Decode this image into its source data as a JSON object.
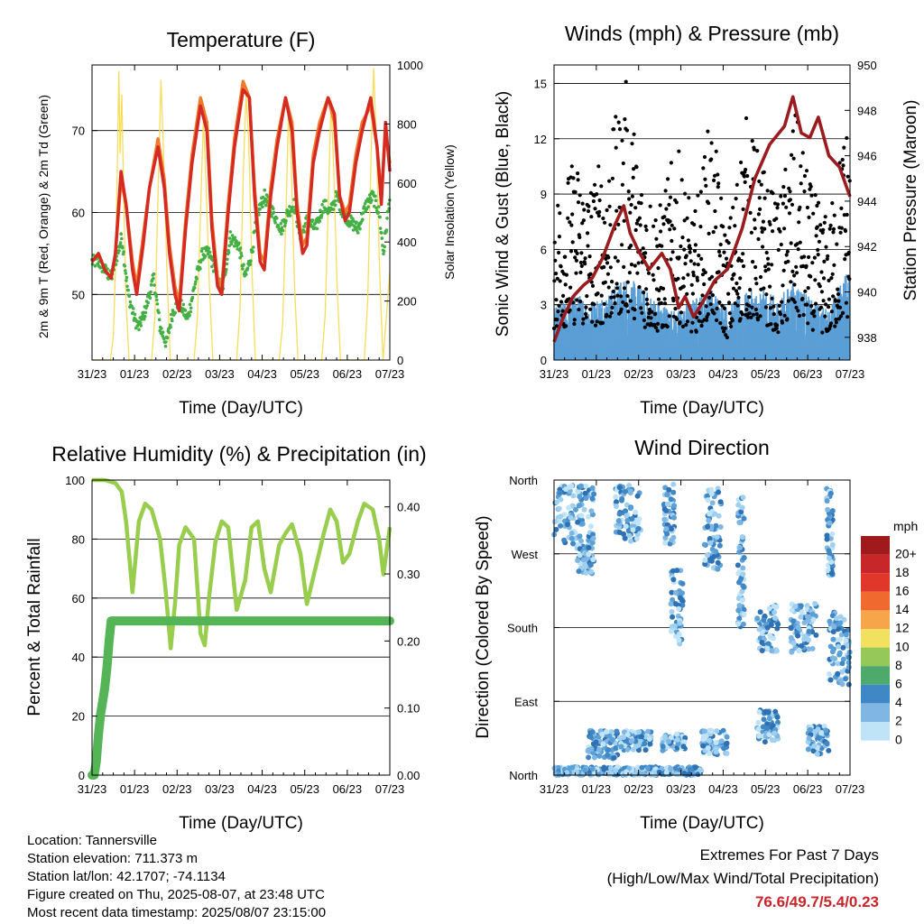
{
  "station": {
    "location_line": "Location: Tannersville",
    "elevation_line": "Station elevation: 711.373 m",
    "latlon_line": "Station lat/lon: 42.1707; -74.1134",
    "created_line": "Figure created on Thu, 2025-08-07, at 23:48 UTC",
    "recent_line": "Most recent data timestamp: 2025/08/07 23:15:00"
  },
  "extremes": {
    "line1": "Extremes For Past 7 Days",
    "line2": "(High/Low/Max Wind/Total Precipitation)",
    "values": "76.6/49.7/5.4/0.23"
  },
  "time_ticks": [
    "31/23",
    "01/23",
    "02/23",
    "03/23",
    "04/23",
    "05/23",
    "06/23",
    "07/23"
  ],
  "colors": {
    "temp_2m": "#d42a22",
    "temp_9m": "#f07a2a",
    "dewpoint": "#44b044",
    "solar": "#f7dd5a",
    "wind": "#5b9fd6",
    "gust": "#000000",
    "pressure": "#9b1c1f",
    "rh": "#98cd4d",
    "precip": "#55b556"
  },
  "chart_data": [
    {
      "type": "line",
      "title": "Temperature (F)",
      "xlabel": "Time (Day/UTC)",
      "ylabel": "2m & 9m T (Red, Orange) & 2m Td (Green)",
      "y2label": "Solar Insolation (Yellow)",
      "x_ticks": [
        "31/23",
        "01/23",
        "02/23",
        "03/23",
        "04/23",
        "05/23",
        "06/23",
        "07/23"
      ],
      "xlim": [
        0,
        7
      ],
      "ylim": [
        42,
        78
      ],
      "y_ticks": [
        50,
        60,
        70
      ],
      "y2lim": [
        0,
        1000
      ],
      "y2_ticks": [
        0,
        200,
        400,
        600,
        800,
        1000
      ],
      "grid": true,
      "series": [
        {
          "axis": "left",
          "x": [
            0,
            0.15,
            0.3,
            0.45,
            0.55,
            0.68,
            0.8,
            0.95,
            1.05,
            1.2,
            1.35,
            1.55,
            1.7,
            1.82,
            1.95,
            2.05,
            2.2,
            2.35,
            2.55,
            2.7,
            2.82,
            2.95,
            3.05,
            3.2,
            3.35,
            3.55,
            3.7,
            3.82,
            3.95,
            4.05,
            4.2,
            4.35,
            4.55,
            4.7,
            4.82,
            4.95,
            5.05,
            5.2,
            5.35,
            5.55,
            5.7,
            5.82,
            5.95,
            6.05,
            6.2,
            6.35,
            6.55,
            6.7,
            6.8,
            6.9,
            7.0
          ],
          "values": [
            54,
            55,
            53,
            52,
            55,
            65,
            61,
            53,
            50,
            56,
            63,
            68,
            63,
            55,
            50,
            48,
            58,
            66,
            73,
            70,
            58,
            51,
            50,
            60,
            68,
            75,
            74,
            62,
            54,
            53,
            62,
            68,
            74,
            70,
            60,
            55,
            56,
            66,
            70,
            74,
            72,
            62,
            59,
            60,
            66,
            70,
            74,
            68,
            61,
            71,
            65
          ]
        },
        {
          "axis": "left",
          "x": [
            0,
            0.15,
            0.3,
            0.45,
            0.55,
            0.68,
            0.8,
            0.95,
            1.05,
            1.2,
            1.35,
            1.55,
            1.7,
            1.82,
            1.95,
            2.05,
            2.2,
            2.35,
            2.55,
            2.7,
            2.82,
            2.95,
            3.05,
            3.2,
            3.35,
            3.55,
            3.7,
            3.82,
            3.95,
            4.05,
            4.2,
            4.35,
            4.55,
            4.7,
            4.82,
            4.95,
            5.05,
            5.2,
            5.35,
            5.55,
            5.7,
            5.82,
            5.95,
            6.05,
            6.2,
            6.35,
            6.55,
            6.7,
            6.8,
            6.9,
            7.0
          ],
          "values": [
            54,
            55,
            53,
            52,
            55,
            64,
            61,
            54,
            51,
            57,
            63,
            69,
            64,
            56,
            51,
            49,
            59,
            67,
            74,
            71,
            59,
            52,
            51,
            61,
            69,
            76,
            74,
            63,
            55,
            54,
            63,
            69,
            74,
            71,
            61,
            56,
            57,
            67,
            71,
            74,
            71,
            62,
            60,
            61,
            67,
            71,
            73,
            68,
            62,
            70,
            66
          ]
        },
        {
          "axis": "left",
          "x": [
            0,
            0.15,
            0.3,
            0.45,
            0.55,
            0.7,
            0.85,
            1.0,
            1.1,
            1.25,
            1.45,
            1.6,
            1.75,
            1.9,
            2.05,
            2.25,
            2.45,
            2.6,
            2.75,
            2.9,
            3.05,
            3.25,
            3.45,
            3.6,
            3.75,
            3.9,
            4.05,
            4.25,
            4.45,
            4.6,
            4.75,
            4.9,
            5.05,
            5.25,
            5.45,
            5.6,
            5.75,
            5.9,
            6.05,
            6.25,
            6.45,
            6.6,
            6.75,
            6.85,
            7.0
          ],
          "values": [
            54,
            54,
            53,
            52,
            54,
            57,
            50,
            47,
            46,
            48,
            52,
            46,
            44,
            48,
            49,
            47,
            52,
            55,
            55,
            53,
            50,
            57,
            56,
            52,
            55,
            60,
            62,
            60,
            58,
            60,
            61,
            57,
            59,
            58,
            61,
            60,
            62,
            60,
            59,
            58,
            61,
            62,
            60,
            55,
            62
          ]
        },
        {
          "axis": "right",
          "x": [
            0,
            0.43,
            0.5,
            0.55,
            0.6,
            0.63,
            0.66,
            0.7,
            0.75,
            0.8,
            0.87,
            1.4,
            1.48,
            1.56,
            1.62,
            1.68,
            1.76,
            1.84,
            2.4,
            2.48,
            2.56,
            2.62,
            2.68,
            2.76,
            2.84,
            3.4,
            3.48,
            3.56,
            3.62,
            3.68,
            3.76,
            3.84,
            4.4,
            4.48,
            4.56,
            4.62,
            4.68,
            4.76,
            4.84,
            5.4,
            5.48,
            5.56,
            5.62,
            5.68,
            5.76,
            5.84,
            6.4,
            6.48,
            6.56,
            6.62,
            6.68,
            6.76,
            6.84,
            7.0
          ],
          "values": [
            0,
            0,
            80,
            300,
            700,
            980,
            700,
            900,
            500,
            200,
            0,
            0,
            150,
            600,
            950,
            700,
            300,
            0,
            0,
            150,
            550,
            820,
            600,
            250,
            0,
            0,
            180,
            650,
            900,
            750,
            300,
            0,
            0,
            120,
            500,
            860,
            680,
            250,
            0,
            0,
            150,
            560,
            880,
            650,
            260,
            0,
            0,
            200,
            700,
            990,
            760,
            300,
            0,
            300
          ]
        }
      ]
    },
    {
      "type": "scatter",
      "title": "Winds (mph) & Pressure (mb)",
      "xlabel": "Time (Day/UTC)",
      "ylabel": "Sonic Wind & Gust (Blue, Black)",
      "y2label": "Station Pressure (Maroon)",
      "x_ticks": [
        "31/23",
        "01/23",
        "02/23",
        "03/23",
        "04/23",
        "05/23",
        "06/23",
        "07/23"
      ],
      "xlim": [
        0,
        7
      ],
      "ylim": [
        0,
        16
      ],
      "y_ticks": [
        0,
        3,
        6,
        9,
        12,
        15
      ],
      "y2lim": [
        937,
        950
      ],
      "y2_ticks": [
        938,
        940,
        942,
        944,
        946,
        948,
        950
      ],
      "grid": true,
      "wind_envelope": {
        "x": [
          0,
          0.5,
          0.9,
          1.3,
          1.7,
          2.1,
          2.5,
          2.9,
          3.3,
          3.7,
          4.1,
          4.5,
          4.9,
          5.3,
          5.7,
          6.1,
          6.5,
          6.9,
          7.0
        ],
        "values": [
          2.0,
          2.6,
          2.4,
          2.7,
          3.3,
          2.8,
          2.3,
          1.9,
          2.4,
          2.9,
          2.1,
          2.6,
          2.8,
          2.4,
          3.2,
          2.3,
          2.0,
          3.5,
          3.2
        ]
      },
      "gust_envelope": {
        "x": [
          0,
          0.5,
          0.9,
          1.3,
          1.7,
          2.1,
          2.5,
          2.9,
          3.3,
          3.7,
          4.1,
          4.5,
          4.9,
          5.3,
          5.7,
          6.1,
          6.5,
          6.9,
          7.0
        ],
        "values": [
          5.5,
          6.5,
          6.0,
          7.0,
          9.0,
          6.0,
          5.0,
          7.0,
          4.5,
          8.0,
          4.0,
          8.0,
          6.5,
          5.0,
          8.0,
          5.5,
          4.5,
          8.0,
          7.0
        ]
      },
      "series": [
        {
          "name": "Pressure",
          "axis": "right",
          "x": [
            0,
            0.2,
            0.45,
            0.7,
            0.9,
            1.15,
            1.45,
            1.65,
            1.8,
            2.0,
            2.25,
            2.55,
            2.75,
            2.95,
            3.1,
            3.3,
            3.5,
            3.8,
            4.1,
            4.45,
            4.75,
            5.1,
            5.45,
            5.65,
            5.85,
            6.05,
            6.25,
            6.5,
            6.75,
            7.0
          ],
          "values": [
            937.8,
            938.8,
            939.8,
            940.3,
            940.6,
            941.5,
            943.0,
            943.8,
            942.6,
            941.8,
            941.0,
            941.7,
            941.0,
            939.3,
            939.8,
            938.9,
            939.5,
            940.5,
            941.0,
            942.8,
            945.0,
            946.5,
            947.3,
            948.6,
            947.0,
            946.8,
            947.7,
            946.0,
            945.5,
            944.2
          ]
        }
      ]
    },
    {
      "type": "line",
      "title": "Relative Humidity (%) & Precipitation (in)",
      "xlabel": "Time (Day/UTC)",
      "ylabel": "Percent & Total Rainfall",
      "x_ticks": [
        "31/23",
        "01/23",
        "02/23",
        "03/23",
        "04/23",
        "05/23",
        "06/23",
        "07/23"
      ],
      "xlim": [
        0,
        7
      ],
      "ylim": [
        0,
        100
      ],
      "y_ticks": [
        0,
        20,
        40,
        60,
        80,
        100
      ],
      "y2lim": [
        0,
        0.44
      ],
      "y2_ticks": [
        "0.00",
        "0.10",
        "0.20",
        "0.30",
        "0.40"
      ],
      "grid": true,
      "series": [
        {
          "name": "RH",
          "axis": "left",
          "x": [
            0,
            0.3,
            0.55,
            0.7,
            0.8,
            0.95,
            1.1,
            1.25,
            1.4,
            1.6,
            1.72,
            1.85,
            1.95,
            2.05,
            2.2,
            2.4,
            2.55,
            2.65,
            2.75,
            2.9,
            3.05,
            3.2,
            3.4,
            3.6,
            3.75,
            3.9,
            4.05,
            4.2,
            4.4,
            4.55,
            4.7,
            4.9,
            5.05,
            5.25,
            5.45,
            5.6,
            5.75,
            5.9,
            6.05,
            6.25,
            6.4,
            6.6,
            6.75,
            6.85,
            7.0
          ],
          "values": [
            100,
            100,
            99,
            96,
            86,
            62,
            86,
            92,
            90,
            80,
            64,
            43,
            58,
            78,
            84,
            80,
            48,
            44,
            60,
            79,
            86,
            84,
            56,
            66,
            84,
            86,
            70,
            62,
            78,
            82,
            85,
            75,
            58,
            70,
            82,
            90,
            86,
            72,
            75,
            86,
            92,
            90,
            80,
            68,
            84
          ]
        },
        {
          "name": "Precipitation",
          "axis": "right",
          "x": [
            0,
            0.05,
            0.1,
            0.15,
            0.2,
            0.25,
            0.3,
            0.35,
            0.4,
            0.45,
            7.0
          ],
          "values": [
            0,
            0,
            0.02,
            0.06,
            0.09,
            0.11,
            0.13,
            0.16,
            0.2,
            0.23,
            0.23
          ]
        }
      ]
    },
    {
      "type": "scatter",
      "title": "Wind Direction",
      "xlabel": "Time (Day/UTC)",
      "ylabel": "Direction (Colored By Speed)",
      "x_ticks": [
        "31/23",
        "01/23",
        "02/23",
        "03/23",
        "04/23",
        "05/23",
        "06/23",
        "07/23"
      ],
      "xlim": [
        0,
        7
      ],
      "y_ticks": [
        "North",
        "East",
        "South",
        "West",
        "North"
      ],
      "ylim_deg": [
        0,
        360
      ],
      "grid": true,
      "legend": {
        "title": "mph",
        "labels": [
          "20+",
          "18",
          "16",
          "14",
          "12",
          "10",
          "8",
          "6",
          "4",
          "2",
          "0"
        ],
        "colors": [
          "#a01a1c",
          "#c8272a",
          "#e1362a",
          "#f06a30",
          "#f6a54a",
          "#f2e15e",
          "#95c858",
          "#4daa6a",
          "#3f88c5",
          "#7fb6e3",
          "#bfe3f7"
        ]
      },
      "clusters": [
        {
          "x0": 0.0,
          "x1": 0.95,
          "d0": 275,
          "d1": 355
        },
        {
          "x0": 0.55,
          "x1": 0.95,
          "d0": 245,
          "d1": 280
        },
        {
          "x0": 1.45,
          "x1": 2.05,
          "d0": 285,
          "d1": 355
        },
        {
          "x0": 2.6,
          "x1": 2.85,
          "d0": 280,
          "d1": 355
        },
        {
          "x0": 2.75,
          "x1": 3.05,
          "d0": 160,
          "d1": 250
        },
        {
          "x0": 3.55,
          "x1": 3.95,
          "d0": 250,
          "d1": 350
        },
        {
          "x0": 4.35,
          "x1": 4.5,
          "d0": 180,
          "d1": 340
        },
        {
          "x0": 4.8,
          "x1": 5.3,
          "d0": 150,
          "d1": 210
        },
        {
          "x0": 5.6,
          "x1": 6.2,
          "d0": 150,
          "d1": 210
        },
        {
          "x0": 6.5,
          "x1": 7.0,
          "d0": 110,
          "d1": 200
        },
        {
          "x0": 6.45,
          "x1": 6.6,
          "d0": 240,
          "d1": 355
        },
        {
          "x0": 0.8,
          "x1": 1.5,
          "d0": 20,
          "d1": 55
        },
        {
          "x0": 1.55,
          "x1": 2.3,
          "d0": 30,
          "d1": 55
        },
        {
          "x0": 2.55,
          "x1": 3.1,
          "d0": 30,
          "d1": 50
        },
        {
          "x0": 3.5,
          "x1": 4.1,
          "d0": 25,
          "d1": 55
        },
        {
          "x0": 4.8,
          "x1": 5.3,
          "d0": 40,
          "d1": 80
        },
        {
          "x0": 6.0,
          "x1": 6.5,
          "d0": 25,
          "d1": 60
        },
        {
          "x0": 0.0,
          "x1": 3.5,
          "d0": 0,
          "d1": 10
        }
      ]
    }
  ]
}
